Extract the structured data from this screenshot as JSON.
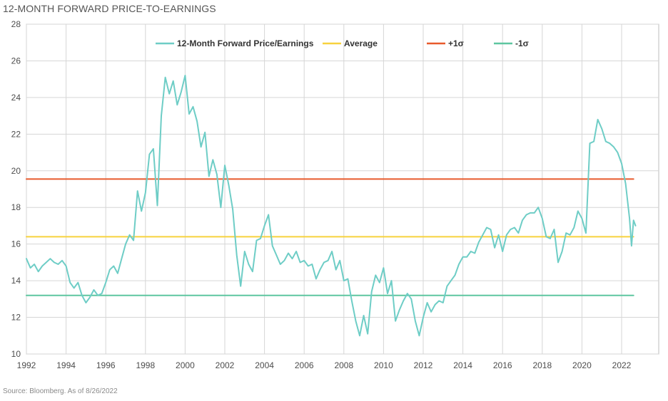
{
  "title": "12-MONTH FORWARD PRICE-TO-EARNINGS",
  "source": "Source: Bloomberg. As of 8/26/2022",
  "chart_data": {
    "type": "line",
    "title": "12-MONTH FORWARD PRICE-TO-EARNINGS",
    "xlabel": "",
    "ylabel": "",
    "xlim": [
      1992,
      2024
    ],
    "ylim": [
      10,
      28
    ],
    "x_ticks": [
      1992,
      1994,
      1996,
      1998,
      2000,
      2002,
      2004,
      2006,
      2008,
      2010,
      2012,
      2014,
      2016,
      2018,
      2020,
      2022
    ],
    "y_ticks": [
      10,
      12,
      14,
      16,
      18,
      20,
      22,
      24,
      26,
      28
    ],
    "grid": true,
    "legend_position": "top",
    "series": [
      {
        "name": "12-Month Forward Price/Earnings",
        "color": "#6ecdc6",
        "points": [
          [
            1992.0,
            15.2
          ],
          [
            1992.2,
            14.7
          ],
          [
            1992.4,
            14.9
          ],
          [
            1992.6,
            14.5
          ],
          [
            1992.8,
            14.8
          ],
          [
            1993.0,
            15.0
          ],
          [
            1993.2,
            15.2
          ],
          [
            1993.4,
            15.0
          ],
          [
            1993.6,
            14.9
          ],
          [
            1993.8,
            15.1
          ],
          [
            1994.0,
            14.8
          ],
          [
            1994.2,
            13.9
          ],
          [
            1994.4,
            13.6
          ],
          [
            1994.6,
            13.9
          ],
          [
            1994.8,
            13.2
          ],
          [
            1995.0,
            12.8
          ],
          [
            1995.2,
            13.1
          ],
          [
            1995.4,
            13.5
          ],
          [
            1995.6,
            13.2
          ],
          [
            1995.8,
            13.3
          ],
          [
            1996.0,
            13.9
          ],
          [
            1996.2,
            14.6
          ],
          [
            1996.4,
            14.8
          ],
          [
            1996.6,
            14.4
          ],
          [
            1996.8,
            15.2
          ],
          [
            1997.0,
            16.0
          ],
          [
            1997.2,
            16.5
          ],
          [
            1997.4,
            16.2
          ],
          [
            1997.6,
            18.9
          ],
          [
            1997.8,
            17.8
          ],
          [
            1998.0,
            18.8
          ],
          [
            1998.2,
            20.9
          ],
          [
            1998.4,
            21.2
          ],
          [
            1998.6,
            18.1
          ],
          [
            1998.8,
            23.0
          ],
          [
            1999.0,
            25.1
          ],
          [
            1999.2,
            24.2
          ],
          [
            1999.4,
            24.9
          ],
          [
            1999.6,
            23.6
          ],
          [
            1999.8,
            24.3
          ],
          [
            2000.0,
            25.2
          ],
          [
            2000.2,
            23.1
          ],
          [
            2000.4,
            23.5
          ],
          [
            2000.6,
            22.7
          ],
          [
            2000.8,
            21.3
          ],
          [
            2001.0,
            22.1
          ],
          [
            2001.2,
            19.7
          ],
          [
            2001.4,
            20.6
          ],
          [
            2001.6,
            19.8
          ],
          [
            2001.8,
            18.0
          ],
          [
            2002.0,
            20.3
          ],
          [
            2002.2,
            19.2
          ],
          [
            2002.4,
            17.9
          ],
          [
            2002.6,
            15.4
          ],
          [
            2002.8,
            13.7
          ],
          [
            2003.0,
            15.6
          ],
          [
            2003.2,
            14.9
          ],
          [
            2003.4,
            14.5
          ],
          [
            2003.6,
            16.2
          ],
          [
            2003.8,
            16.3
          ],
          [
            2004.0,
            17.0
          ],
          [
            2004.2,
            17.6
          ],
          [
            2004.4,
            15.9
          ],
          [
            2004.6,
            15.4
          ],
          [
            2004.8,
            14.9
          ],
          [
            2005.0,
            15.1
          ],
          [
            2005.2,
            15.5
          ],
          [
            2005.4,
            15.2
          ],
          [
            2005.6,
            15.6
          ],
          [
            2005.8,
            15.0
          ],
          [
            2006.0,
            15.1
          ],
          [
            2006.2,
            14.8
          ],
          [
            2006.4,
            14.9
          ],
          [
            2006.6,
            14.1
          ],
          [
            2006.8,
            14.6
          ],
          [
            2007.0,
            15.0
          ],
          [
            2007.2,
            15.1
          ],
          [
            2007.4,
            15.6
          ],
          [
            2007.6,
            14.6
          ],
          [
            2007.8,
            15.1
          ],
          [
            2008.0,
            14.0
          ],
          [
            2008.2,
            14.1
          ],
          [
            2008.4,
            12.9
          ],
          [
            2008.6,
            11.8
          ],
          [
            2008.8,
            11.0
          ],
          [
            2009.0,
            12.1
          ],
          [
            2009.2,
            11.1
          ],
          [
            2009.4,
            13.4
          ],
          [
            2009.6,
            14.3
          ],
          [
            2009.8,
            13.9
          ],
          [
            2010.0,
            14.7
          ],
          [
            2010.2,
            13.3
          ],
          [
            2010.4,
            14.0
          ],
          [
            2010.6,
            11.8
          ],
          [
            2010.8,
            12.4
          ],
          [
            2011.0,
            12.9
          ],
          [
            2011.2,
            13.3
          ],
          [
            2011.4,
            13.0
          ],
          [
            2011.6,
            11.8
          ],
          [
            2011.8,
            11.0
          ],
          [
            2012.0,
            12.0
          ],
          [
            2012.2,
            12.8
          ],
          [
            2012.4,
            12.3
          ],
          [
            2012.6,
            12.7
          ],
          [
            2012.8,
            12.9
          ],
          [
            2013.0,
            12.8
          ],
          [
            2013.2,
            13.7
          ],
          [
            2013.4,
            14.0
          ],
          [
            2013.6,
            14.3
          ],
          [
            2013.8,
            14.9
          ],
          [
            2014.0,
            15.3
          ],
          [
            2014.2,
            15.3
          ],
          [
            2014.4,
            15.6
          ],
          [
            2014.6,
            15.5
          ],
          [
            2014.8,
            16.1
          ],
          [
            2015.0,
            16.5
          ],
          [
            2015.2,
            16.9
          ],
          [
            2015.4,
            16.8
          ],
          [
            2015.6,
            15.8
          ],
          [
            2015.8,
            16.5
          ],
          [
            2016.0,
            15.6
          ],
          [
            2016.2,
            16.5
          ],
          [
            2016.4,
            16.8
          ],
          [
            2016.6,
            16.9
          ],
          [
            2016.8,
            16.6
          ],
          [
            2017.0,
            17.3
          ],
          [
            2017.2,
            17.6
          ],
          [
            2017.4,
            17.7
          ],
          [
            2017.6,
            17.7
          ],
          [
            2017.8,
            18.0
          ],
          [
            2018.0,
            17.4
          ],
          [
            2018.2,
            16.4
          ],
          [
            2018.4,
            16.3
          ],
          [
            2018.6,
            16.8
          ],
          [
            2018.8,
            15.0
          ],
          [
            2019.0,
            15.6
          ],
          [
            2019.2,
            16.6
          ],
          [
            2019.4,
            16.5
          ],
          [
            2019.6,
            16.9
          ],
          [
            2019.8,
            17.8
          ],
          [
            2020.0,
            17.4
          ],
          [
            2020.2,
            16.6
          ],
          [
            2020.4,
            21.5
          ],
          [
            2020.6,
            21.6
          ],
          [
            2020.8,
            22.8
          ],
          [
            2021.0,
            22.3
          ],
          [
            2021.2,
            21.6
          ],
          [
            2021.4,
            21.5
          ],
          [
            2021.6,
            21.3
          ],
          [
            2021.8,
            21.0
          ],
          [
            2022.0,
            20.4
          ],
          [
            2022.2,
            19.3
          ],
          [
            2022.4,
            17.4
          ],
          [
            2022.5,
            15.9
          ],
          [
            2022.6,
            17.3
          ],
          [
            2022.7,
            17.0
          ]
        ]
      },
      {
        "name": "Average",
        "color": "#f7d23e",
        "points": [
          [
            1992.0,
            16.4
          ],
          [
            2022.6,
            16.4
          ]
        ]
      },
      {
        "name": "+1σ",
        "color": "#e85a2c",
        "points": [
          [
            1992.0,
            19.55
          ],
          [
            2022.6,
            19.55
          ]
        ]
      },
      {
        "name": "-1σ",
        "color": "#5ec6a0",
        "points": [
          [
            1992.0,
            13.2
          ],
          [
            2022.6,
            13.2
          ]
        ]
      }
    ]
  }
}
